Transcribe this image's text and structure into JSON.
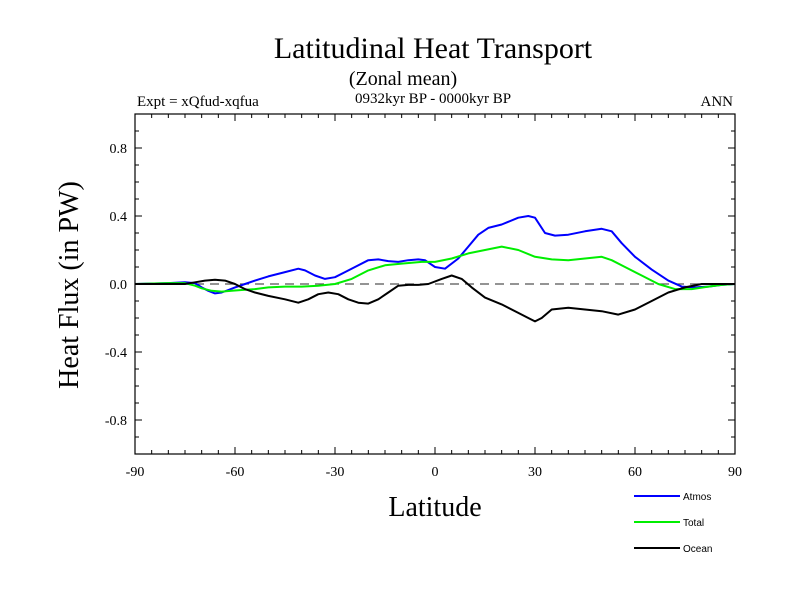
{
  "chart_data": {
    "type": "line",
    "title": "Latitudinal Heat Transport",
    "subtitle": "(Zonal mean)",
    "left_label": "Expt = xQfud-xqfua",
    "center_label": "0932kyr BP - 0000kyr BP",
    "right_label": "ANN",
    "xlabel": "Latitude",
    "ylabel": "Heat Flux (in PW)",
    "xlim": [
      -90,
      90
    ],
    "ylim": [
      -1.0,
      1.0
    ],
    "xticks": [
      -90,
      -60,
      -30,
      0,
      30,
      60,
      90
    ],
    "xtick_labels": [
      "-90",
      "-60",
      "-30",
      "0",
      "30",
      "60",
      "90"
    ],
    "yticks": [
      0.8,
      0.4,
      0.0,
      -0.4,
      -0.8
    ],
    "ytick_labels": [
      "0.8",
      "0.4",
      "0.0",
      "-0.4",
      "-0.8"
    ],
    "zero_line": true,
    "grid": false,
    "legend_position": "bottom-right",
    "series": [
      {
        "name": "Atmos",
        "color": "#0000ff",
        "x": [
          -90,
          -80,
          -75,
          -72,
          -70,
          -68,
          -66,
          -64,
          -62,
          -60,
          -57,
          -54,
          -50,
          -45,
          -41,
          -39,
          -36,
          -33,
          -30,
          -27,
          -24,
          -20,
          -17,
          -14,
          -11,
          -8,
          -5,
          -3,
          0,
          3,
          7,
          10,
          13,
          16,
          20,
          25,
          28,
          30,
          33,
          36,
          40,
          45,
          50,
          53,
          56,
          60,
          65,
          70,
          74,
          78,
          82,
          86,
          90
        ],
        "values": [
          0.0,
          0.005,
          0.01,
          0.005,
          -0.02,
          -0.04,
          -0.055,
          -0.05,
          -0.035,
          -0.02,
          0.0,
          0.02,
          0.045,
          0.07,
          0.09,
          0.08,
          0.05,
          0.03,
          0.04,
          0.07,
          0.1,
          0.14,
          0.145,
          0.135,
          0.13,
          0.14,
          0.145,
          0.14,
          0.1,
          0.09,
          0.15,
          0.22,
          0.29,
          0.33,
          0.35,
          0.39,
          0.4,
          0.39,
          0.3,
          0.285,
          0.29,
          0.31,
          0.325,
          0.31,
          0.24,
          0.16,
          0.085,
          0.02,
          -0.015,
          -0.02,
          -0.015,
          -0.005,
          0.0
        ]
      },
      {
        "name": "Total",
        "color": "#00ee00",
        "x": [
          -90,
          -80,
          -75,
          -72,
          -70,
          -67,
          -64,
          -61,
          -58,
          -54,
          -50,
          -45,
          -40,
          -35,
          -30,
          -25,
          -20,
          -15,
          -10,
          -7,
          -4,
          0,
          5,
          10,
          15,
          20,
          25,
          30,
          35,
          40,
          45,
          50,
          53,
          57,
          62,
          67,
          72,
          77,
          82,
          86,
          90
        ],
        "values": [
          0.0,
          0.005,
          0.005,
          -0.01,
          -0.025,
          -0.04,
          -0.045,
          -0.04,
          -0.035,
          -0.03,
          -0.02,
          -0.015,
          -0.015,
          -0.01,
          0.0,
          0.03,
          0.08,
          0.11,
          0.12,
          0.125,
          0.13,
          0.13,
          0.15,
          0.18,
          0.2,
          0.22,
          0.2,
          0.16,
          0.145,
          0.14,
          0.15,
          0.16,
          0.14,
          0.1,
          0.05,
          0.0,
          -0.03,
          -0.03,
          -0.015,
          -0.005,
          0.0
        ]
      },
      {
        "name": "Ocean",
        "color": "#000000",
        "x": [
          -90,
          -80,
          -75,
          -72,
          -69,
          -66,
          -63,
          -60,
          -57,
          -54,
          -50,
          -45,
          -41,
          -38,
          -35,
          -32,
          -29,
          -26,
          -23,
          -20,
          -17,
          -14,
          -11,
          -8,
          -5,
          -2,
          2,
          5,
          8,
          11,
          15,
          20,
          25,
          28,
          30,
          32,
          35,
          40,
          45,
          50,
          55,
          60,
          65,
          70,
          75,
          80,
          85,
          90
        ],
        "values": [
          0.0,
          0.0,
          0.0,
          0.01,
          0.02,
          0.025,
          0.02,
          0.0,
          -0.03,
          -0.05,
          -0.07,
          -0.09,
          -0.11,
          -0.09,
          -0.06,
          -0.05,
          -0.06,
          -0.09,
          -0.11,
          -0.115,
          -0.09,
          -0.05,
          -0.01,
          -0.005,
          -0.005,
          0.0,
          0.03,
          0.05,
          0.03,
          -0.02,
          -0.08,
          -0.12,
          -0.17,
          -0.2,
          -0.22,
          -0.2,
          -0.15,
          -0.14,
          -0.15,
          -0.16,
          -0.18,
          -0.15,
          -0.1,
          -0.05,
          -0.02,
          0.0,
          0.0,
          0.0
        ]
      }
    ]
  }
}
